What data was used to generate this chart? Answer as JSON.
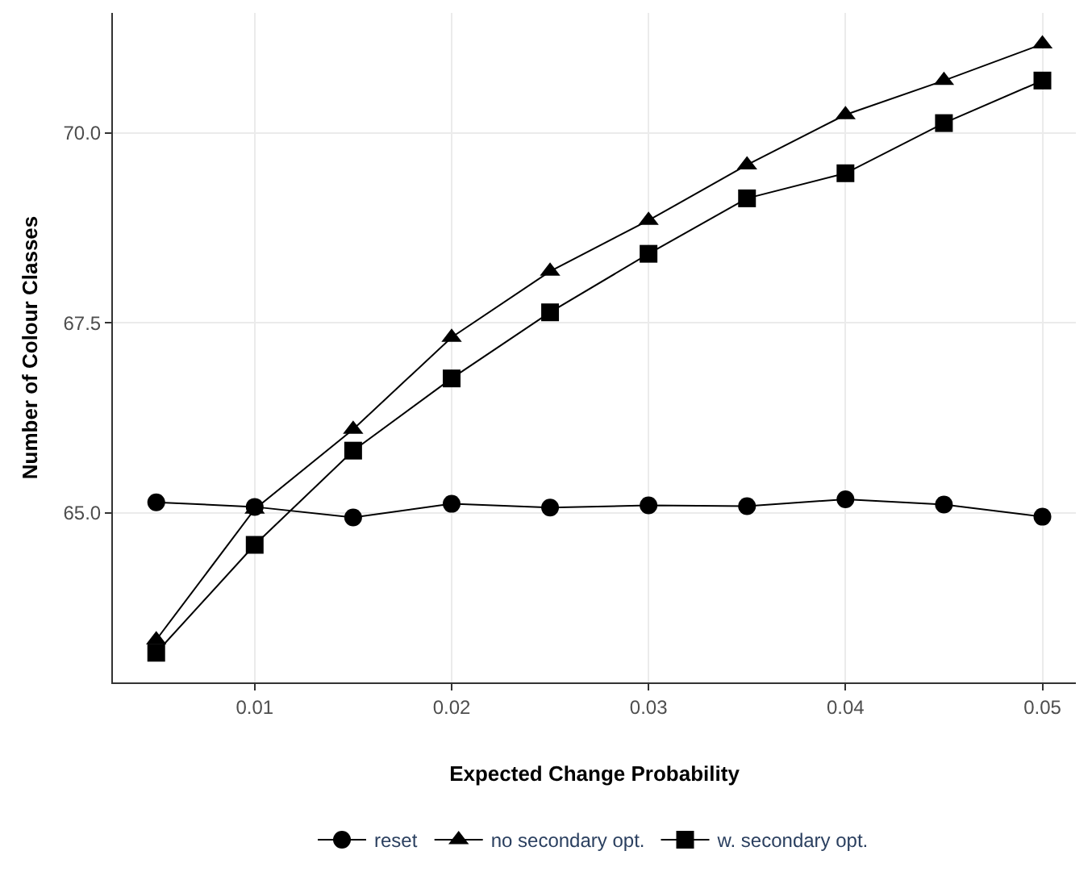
{
  "chart_data": {
    "type": "line",
    "xlabel": "Expected Change Probability",
    "ylabel": "Number of Colour Classes",
    "x": [
      0.005,
      0.01,
      0.015,
      0.02,
      0.025,
      0.03,
      0.035,
      0.04,
      0.045,
      0.05
    ],
    "series": [
      {
        "name": "reset",
        "color": "#000000",
        "marker": "circle",
        "values": [
          65.14,
          65.08,
          64.94,
          65.12,
          65.07,
          65.1,
          65.09,
          65.18,
          65.11,
          64.95
        ]
      },
      {
        "name": "no secondary opt.",
        "color": "#000000",
        "marker": "triangle",
        "values": [
          63.33,
          65.05,
          66.1,
          67.31,
          68.18,
          68.85,
          69.58,
          70.24,
          70.69,
          71.17
        ]
      },
      {
        "name": "w. secondary opt.",
        "color": "#000000",
        "marker": "square",
        "values": [
          63.16,
          64.58,
          65.82,
          66.77,
          67.64,
          68.41,
          69.14,
          69.47,
          70.13,
          70.69
        ]
      }
    ],
    "xlim": [
      0.0028,
      0.0517
    ],
    "ylim": [
      62.77,
      71.58
    ],
    "xticks": [
      0.01,
      0.02,
      0.03,
      0.04,
      0.05
    ],
    "yticks": [
      {
        "value": 65,
        "label": "65.0"
      },
      {
        "value": 67.5,
        "label": "67.5"
      },
      {
        "value": 70,
        "label": "70.0"
      }
    ],
    "grid": true,
    "legend": "bottom",
    "line_style": "solid"
  }
}
